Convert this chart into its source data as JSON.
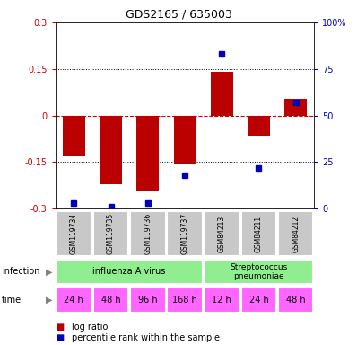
{
  "title": "GDS2165 / 635003",
  "samples": [
    "GSM119734",
    "GSM119735",
    "GSM119736",
    "GSM119737",
    "GSM84213",
    "GSM84211",
    "GSM84212"
  ],
  "log_ratio": [
    -0.13,
    -0.22,
    -0.245,
    -0.155,
    0.14,
    -0.065,
    0.055
  ],
  "percentile_rank": [
    3,
    1,
    3,
    18,
    83,
    22,
    57
  ],
  "ylim_left": [
    -0.3,
    0.3
  ],
  "yticks_left": [
    -0.3,
    -0.15,
    0,
    0.15,
    0.3
  ],
  "ytick_labels_left": [
    "-0.3",
    "-0.15",
    "0",
    "0.15",
    "0.3"
  ],
  "ytick_labels_right": [
    "0",
    "25",
    "50",
    "75",
    "100%"
  ],
  "yticks_right": [
    0,
    25,
    50,
    75,
    100
  ],
  "bar_color": "#BB0000",
  "dot_color": "#0000BB",
  "sample_box_color": "#C8C8C8",
  "infection_color": "#90EE90",
  "time_color_flu": "#FF66FF",
  "time_color_strep": "#FF66FF",
  "label_color_left": "#CC0000",
  "label_color_right": "#0000CC",
  "zero_line_color": "#CC0000",
  "grid_line_color": "#000000",
  "infection1_label": "influenza A virus",
  "infection2_label": "Streptococcus\npneumoniae",
  "time_labels": [
    "24 h",
    "48 h",
    "96 h",
    "168 h",
    "12 h",
    "24 h",
    "48 h"
  ],
  "legend_bar_label": "log ratio",
  "legend_dot_label": "percentile rank within the sample"
}
